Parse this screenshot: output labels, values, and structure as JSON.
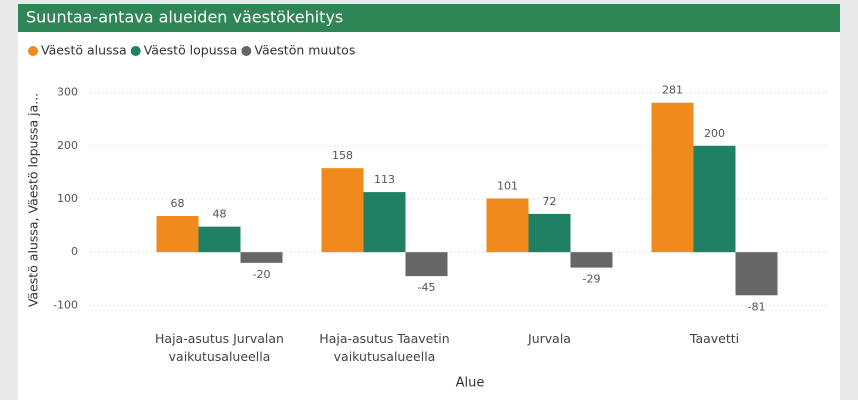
{
  "chart_data": {
    "type": "bar",
    "title": "Suuntaa-antava alueiden väestökehitys",
    "x_label": "Alue",
    "y_label": "Väestö alussa, Väestö lopussa ja...",
    "categories": [
      "Haja-asutus Jurvalan vaikutusalueella",
      "Haja-asutus Taavetin vaikutusalueella",
      "Jurvala",
      "Taavetti"
    ],
    "series": [
      {
        "name": "Väestö alussa",
        "color": "#f18a1c",
        "values": [
          68,
          158,
          101,
          281
        ]
      },
      {
        "name": "Väestö lopussa",
        "color": "#1f8064",
        "values": [
          48,
          113,
          72,
          200
        ]
      },
      {
        "name": "Väestön muutos",
        "color": "#666666",
        "values": [
          -20,
          -45,
          -29,
          -81
        ]
      }
    ],
    "ylim": [
      -120,
      320
    ],
    "yticks": [
      -100,
      0,
      100,
      200,
      300
    ],
    "grid": true,
    "legend": "top-left"
  }
}
